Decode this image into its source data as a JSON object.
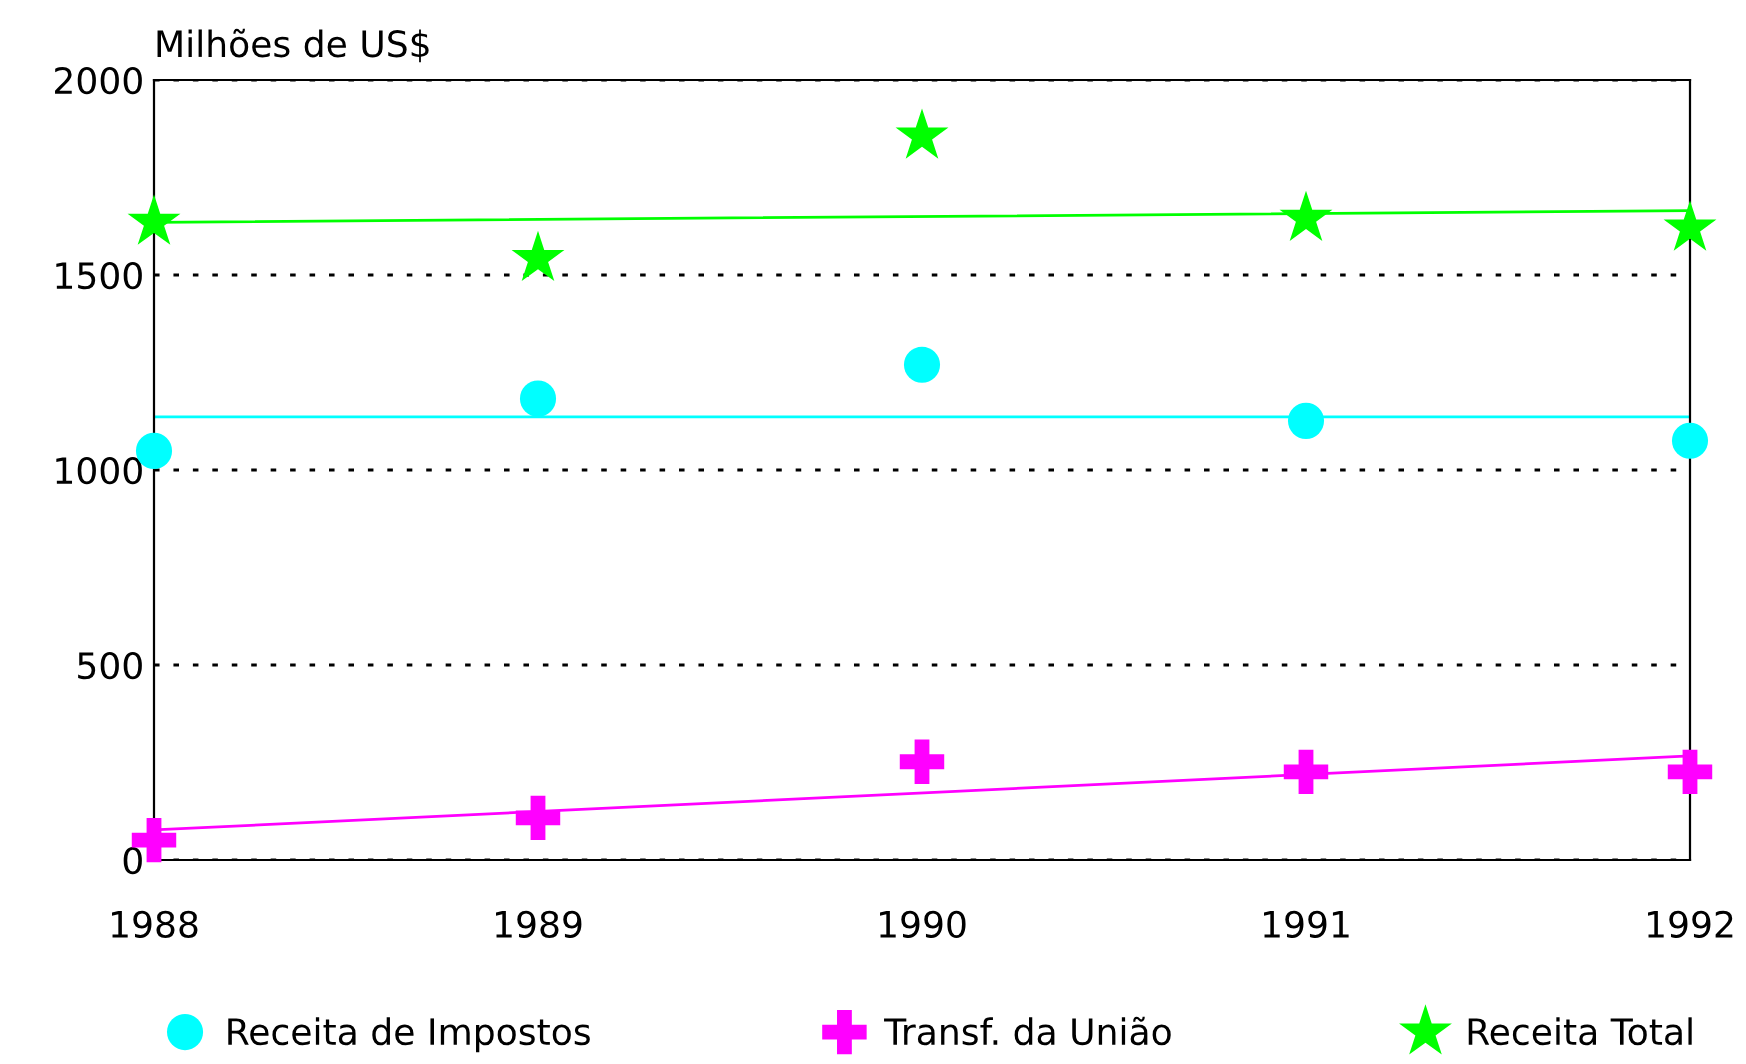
{
  "chart_data": {
    "type": "scatter",
    "ylabel": "Milhões de US$",
    "xlim": [
      1988,
      1992
    ],
    "xticks": [
      1988,
      1989,
      1990,
      1991,
      1992
    ],
    "ylim": [
      0,
      2000
    ],
    "yticks": [
      0,
      500,
      1000,
      1500,
      2000
    ],
    "grid": "y",
    "legend": "bottom",
    "series": [
      {
        "name": "Receita de Impostos",
        "marker": "circle",
        "color": "#00ffff",
        "x": [
          1988,
          1989,
          1990,
          1991,
          1992
        ],
        "values": [
          1049,
          1183,
          1270,
          1126,
          1075
        ]
      },
      {
        "name": "Transf. da União",
        "marker": "cross",
        "color": "#ff00ff",
        "x": [
          1988,
          1989,
          1990,
          1991,
          1992
        ],
        "values": [
          51,
          108,
          252,
          226,
          226
        ]
      },
      {
        "name": "Receita Total",
        "marker": "star",
        "color": "#00ff00",
        "x": [
          1988,
          1989,
          1990,
          1991,
          1992
        ],
        "values": [
          1635,
          1542,
          1856,
          1645,
          1620
        ]
      },
      {
        "type": "line",
        "color": "#00ffff",
        "x": [
          1988,
          1992
        ],
        "values": [
          1136,
          1136
        ]
      },
      {
        "type": "line",
        "color": "#ff00ff",
        "x": [
          1988,
          1992
        ],
        "values": [
          77,
          267
        ]
      },
      {
        "type": "line",
        "color": "#00ff00",
        "x": [
          1988,
          1992
        ],
        "values": [
          1635,
          1665
        ]
      }
    ]
  }
}
